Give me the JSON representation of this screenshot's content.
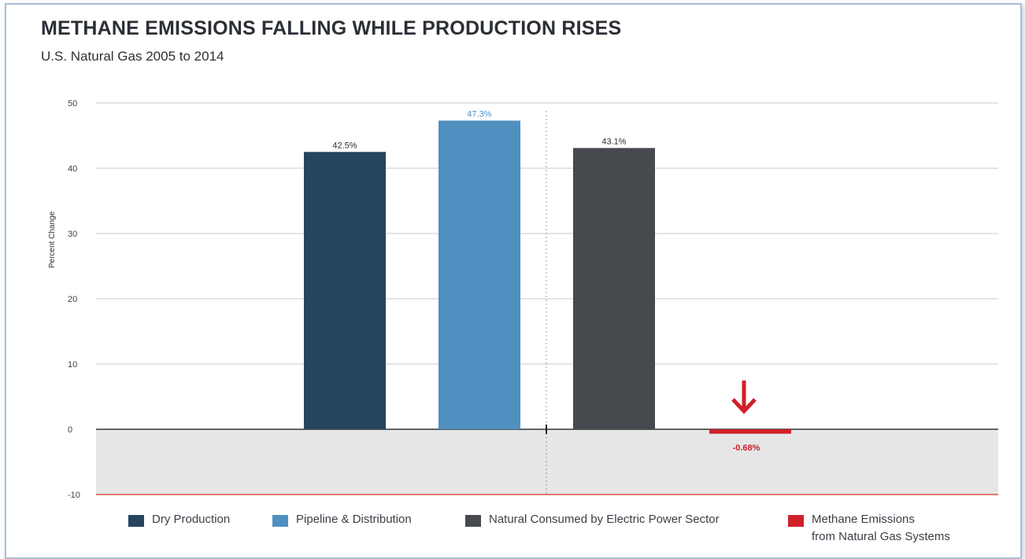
{
  "title": "METHANE EMISSIONS FALLING WHILE PRODUCTION RISES",
  "subtitle": "U.S. Natural Gas 2005 to 2014",
  "chart_data": {
    "type": "bar",
    "title": "METHANE EMISSIONS FALLING WHILE PRODUCTION RISES",
    "subtitle": "U.S. Natural Gas 2005 to 2014",
    "xlabel": "",
    "ylabel": "Percent Change",
    "ylim": [
      -10,
      50
    ],
    "yticks": [
      50,
      40,
      30,
      20,
      10,
      0,
      -10
    ],
    "grid": true,
    "legend_position": "bottom",
    "categories": [
      "Dry Production",
      "Pipeline & Distribution",
      "Natural Consumed by Electric Power Sector",
      "Methane Emissions from Natural Gas Systems"
    ],
    "series": [
      {
        "name": "Dry Production",
        "value": 42.5,
        "label": "42.5%",
        "color": "#27445f"
      },
      {
        "name": "Pipeline & Distribution",
        "value": 47.3,
        "label": "47.3%",
        "color": "#4f90c0"
      },
      {
        "name": "Natural Consumed by Electric Power Sector",
        "value": 43.1,
        "label": "43.1%",
        "color": "#464a4f"
      },
      {
        "name": "Methane Emissions from Natural Gas Systems",
        "value": -0.68,
        "label": "-0.68%",
        "color": "#d0202a"
      }
    ]
  },
  "legend": [
    {
      "label": "Dry Production",
      "color": "#27445f"
    },
    {
      "label": "Pipeline & Distribution",
      "color": "#4f90c0"
    },
    {
      "label": "Natural Consumed by Electric Power Sector",
      "color": "#464a4f"
    },
    {
      "label": "Methane Emissions\nfrom Natural Gas Systems",
      "color": "#d0202a"
    }
  ],
  "icons": {
    "decline_marker": "down-arrow-icon"
  }
}
